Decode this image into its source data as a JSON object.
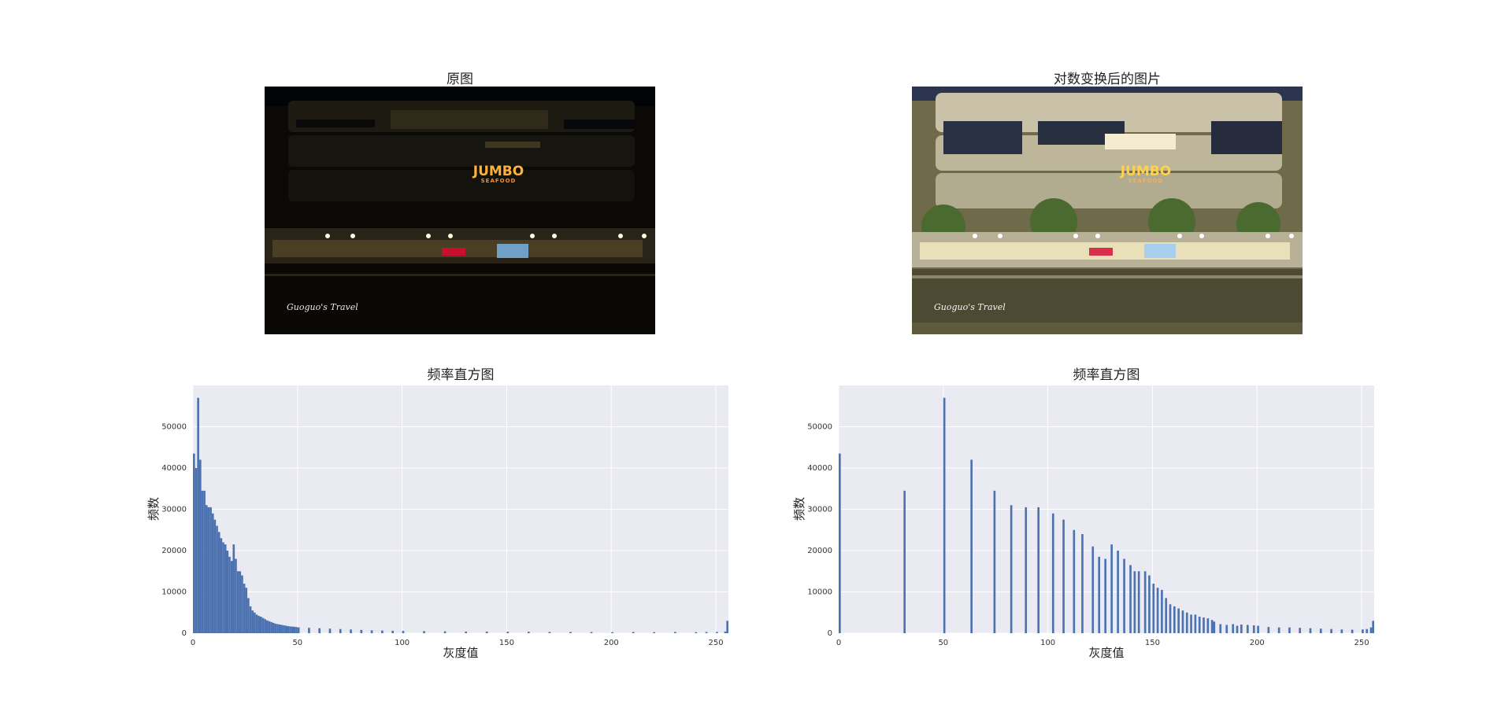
{
  "panels": {
    "original": {
      "title": "原图",
      "watermark": "Guoguo's Travel",
      "sign_main": "JUMBO",
      "sign_sub": "SEAFOOD"
    },
    "log": {
      "title": "对数变换后的图片",
      "watermark": "Guoguo's Travel",
      "sign_main": "JUMBO",
      "sign_sub": "SEAFOOD"
    }
  },
  "colors": {
    "bar": "#4c72b0",
    "plot_bg": "#eaeaf2",
    "grid": "#ffffff"
  },
  "chart_data": [
    {
      "type": "bar",
      "title": "频率直方图",
      "xlabel": "灰度值",
      "ylabel": "频数",
      "xlim": [
        0,
        256
      ],
      "ylim": [
        0,
        60000
      ],
      "xticks": [
        0,
        50,
        100,
        150,
        200,
        250
      ],
      "yticks": [
        0,
        10000,
        20000,
        30000,
        40000,
        50000
      ],
      "grid": true,
      "bin_width": 1,
      "x": [
        0,
        1,
        2,
        3,
        4,
        5,
        6,
        7,
        8,
        9,
        10,
        11,
        12,
        13,
        14,
        15,
        16,
        17,
        18,
        19,
        20,
        21,
        22,
        23,
        24,
        25,
        26,
        27,
        28,
        29,
        30,
        31,
        32,
        33,
        34,
        35,
        36,
        37,
        38,
        39,
        40,
        41,
        42,
        43,
        44,
        45,
        46,
        47,
        48,
        49,
        50,
        55,
        60,
        65,
        70,
        75,
        80,
        85,
        90,
        95,
        100,
        110,
        120,
        130,
        140,
        150,
        160,
        170,
        180,
        190,
        200,
        210,
        220,
        230,
        240,
        245,
        250,
        254,
        255
      ],
      "values": [
        43500,
        40000,
        57000,
        42000,
        34500,
        34500,
        31000,
        30500,
        30500,
        29000,
        27500,
        26000,
        24500,
        23000,
        22000,
        21500,
        20000,
        18500,
        17500,
        21500,
        18000,
        15000,
        15000,
        14000,
        12000,
        11000,
        8500,
        6500,
        5500,
        5000,
        4500,
        4200,
        4000,
        3700,
        3400,
        3100,
        2900,
        2700,
        2500,
        2300,
        2200,
        2100,
        2000,
        1900,
        1800,
        1700,
        1650,
        1600,
        1550,
        1500,
        1400,
        1300,
        1200,
        1100,
        1000,
        900,
        800,
        700,
        650,
        600,
        550,
        500,
        450,
        400,
        400,
        350,
        350,
        300,
        300,
        300,
        250,
        300,
        250,
        300,
        250,
        300,
        300,
        400,
        3000
      ]
    },
    {
      "type": "bar",
      "title": "频率直方图",
      "xlabel": "灰度值",
      "ylabel": "频数",
      "xlim": [
        0,
        256
      ],
      "ylim": [
        0,
        60000
      ],
      "xticks": [
        0,
        50,
        100,
        150,
        200,
        250
      ],
      "yticks": [
        0,
        10000,
        20000,
        30000,
        40000,
        50000
      ],
      "grid": true,
      "bin_width": 1,
      "x": [
        0,
        31,
        50,
        63,
        74,
        82,
        89,
        95,
        102,
        107,
        112,
        116,
        121,
        124,
        127,
        130,
        133,
        136,
        139,
        141,
        143,
        146,
        148,
        150,
        152,
        154,
        156,
        158,
        160,
        162,
        164,
        166,
        168,
        170,
        172,
        174,
        176,
        178,
        179,
        182,
        185,
        188,
        190,
        192,
        195,
        198,
        200,
        205,
        210,
        215,
        220,
        225,
        230,
        235,
        240,
        245,
        250,
        252,
        254,
        255
      ],
      "values": [
        43500,
        34500,
        57000,
        42000,
        34500,
        31000,
        30500,
        30500,
        29000,
        27500,
        25000,
        24000,
        21000,
        18500,
        18000,
        21500,
        20000,
        18000,
        16500,
        15000,
        15000,
        15000,
        14000,
        12000,
        11000,
        10500,
        8500,
        7000,
        6500,
        6000,
        5500,
        5000,
        4500,
        4500,
        4000,
        3800,
        3600,
        3200,
        2800,
        2200,
        2000,
        2200,
        1800,
        2100,
        2000,
        1900,
        1800,
        1500,
        1400,
        1400,
        1300,
        1200,
        1100,
        1000,
        900,
        850,
        900,
        1000,
        1400,
        3000
      ]
    }
  ]
}
